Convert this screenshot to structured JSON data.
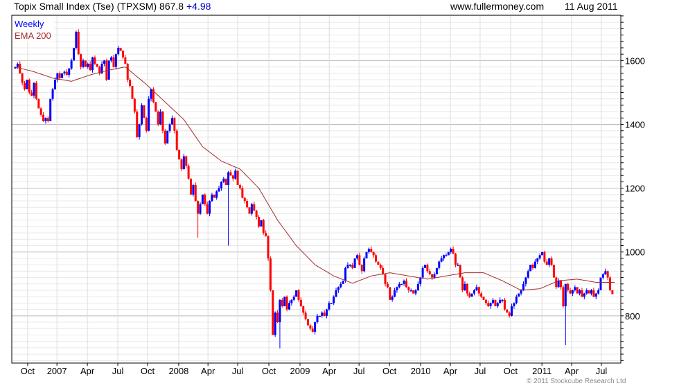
{
  "header": {
    "title": "Topix Small Index (Tse) (TPXSM) 867.8",
    "change": "+4.98",
    "site": "www.fullermoney.com",
    "date": "11 Aug 2011"
  },
  "copyright": "© 2011 Stockcube Research Ltd",
  "chart_data": {
    "type": "candlestick",
    "title": "Topix Small Index (Tse) (TPXSM)",
    "legend": [
      {
        "label": "Weekly",
        "color": "#0000ff"
      },
      {
        "label": "EMA 200",
        "color": "#a52a2a"
      }
    ],
    "legend_placement": "top-left",
    "colors": {
      "up": "#0000ff",
      "down": "#ff0000",
      "ema": "#a52a2a"
    },
    "ylim": [
      652,
      1742
    ],
    "yticks": [
      800,
      1000,
      1200,
      1400,
      1600
    ],
    "xticks": [
      {
        "label": "Oct",
        "week": 5.3
      },
      {
        "label": "2007",
        "week": 17.8
      },
      {
        "label": "Apr",
        "week": 30.8
      },
      {
        "label": "Jul",
        "week": 43.8
      },
      {
        "label": "Oct",
        "week": 56.5
      },
      {
        "label": "2008",
        "week": 69.8
      },
      {
        "label": "Apr",
        "week": 82.3
      },
      {
        "label": "Jul",
        "week": 95
      },
      {
        "label": "Oct",
        "week": 108.3
      },
      {
        "label": "2009",
        "week": 121.6
      },
      {
        "label": "Apr",
        "week": 134.1
      },
      {
        "label": "Jul",
        "week": 146.8
      },
      {
        "label": "Oct",
        "week": 159.8
      },
      {
        "label": "2010",
        "week": 173.1
      },
      {
        "label": "Apr",
        "week": 185.8
      },
      {
        "label": "Jul",
        "week": 198.5
      },
      {
        "label": "Oct",
        "week": 211.5
      },
      {
        "label": "2011",
        "week": 224.9
      },
      {
        "label": "Apr",
        "week": 237.6
      },
      {
        "label": "Jul",
        "week": 250.3
      }
    ],
    "closes": [
      1580,
      1590,
      1560,
      1530,
      1510,
      1540,
      1500,
      1490,
      1530,
      1480,
      1450,
      1430,
      1410,
      1420,
      1410,
      1480,
      1510,
      1540,
      1560,
      1545,
      1560,
      1565,
      1555,
      1575,
      1600,
      1640,
      1690,
      1620,
      1580,
      1600,
      1580,
      1590,
      1570,
      1610,
      1590,
      1580,
      1560,
      1590,
      1600,
      1540,
      1600,
      1610,
      1580,
      1620,
      1640,
      1630,
      1610,
      1590,
      1540,
      1520,
      1480,
      1440,
      1360,
      1400,
      1460,
      1420,
      1380,
      1480,
      1510,
      1470,
      1440,
      1400,
      1440,
      1380,
      1340,
      1380,
      1400,
      1420,
      1380,
      1320,
      1290,
      1260,
      1300,
      1270,
      1230,
      1180,
      1210,
      1160,
      1120,
      1150,
      1180,
      1150,
      1120,
      1160,
      1180,
      1170,
      1190,
      1200,
      1220,
      1230,
      1210,
      1250,
      1240,
      1230,
      1255,
      1210,
      1200,
      1170,
      1160,
      1140,
      1120,
      1150,
      1130,
      1110,
      1080,
      1100,
      1060,
      1050,
      980,
      880,
      740,
      810,
      780,
      850,
      830,
      860,
      820,
      840,
      850,
      860,
      880,
      850,
      830,
      810,
      790,
      770,
      760,
      750,
      780,
      800,
      800,
      810,
      800,
      820,
      840,
      840,
      860,
      880,
      890,
      900,
      910,
      950,
      960,
      960,
      950,
      980,
      990,
      960,
      940,
      980,
      1000,
      1010,
      1000,
      990,
      970,
      960,
      950,
      930,
      900,
      890,
      850,
      860,
      880,
      890,
      900,
      900,
      910,
      890,
      880,
      880,
      870,
      880,
      900,
      920,
      950,
      960,
      940,
      930,
      920,
      930,
      950,
      970,
      980,
      990,
      990,
      1000,
      1010,
      995,
      960,
      960,
      920,
      880,
      900,
      870,
      860,
      870,
      880,
      890,
      870,
      860,
      850,
      840,
      830,
      840,
      850,
      830,
      840,
      850,
      850,
      820,
      810,
      800,
      830,
      840,
      860,
      870,
      880,
      900,
      920,
      940,
      960,
      950,
      970,
      980,
      990,
      1000,
      970,
      960,
      980,
      960,
      920,
      890,
      910,
      890,
      830,
      900,
      880,
      870,
      880,
      890,
      870,
      880,
      860,
      870,
      880,
      870,
      880,
      860,
      870,
      880,
      920,
      930,
      940,
      920,
      880,
      868
    ],
    "first_open": 1575,
    "wick": 8,
    "spike_lows": [
      {
        "week": 78,
        "low": 1045
      },
      {
        "week": 91,
        "low": 1020
      },
      {
        "week": 113,
        "low": 698
      },
      {
        "week": 235,
        "low": 708
      },
      {
        "week": 256,
        "low": 822
      }
    ],
    "ema200": [
      {
        "week": 0,
        "value": 1580
      },
      {
        "week": 8,
        "value": 1565
      },
      {
        "week": 16,
        "value": 1545
      },
      {
        "week": 24,
        "value": 1535
      },
      {
        "week": 32,
        "value": 1555
      },
      {
        "week": 40,
        "value": 1570
      },
      {
        "week": 47,
        "value": 1580
      },
      {
        "week": 56,
        "value": 1525
      },
      {
        "week": 64,
        "value": 1470
      },
      {
        "week": 72,
        "value": 1415
      },
      {
        "week": 80,
        "value": 1330
      },
      {
        "week": 88,
        "value": 1285
      },
      {
        "week": 96,
        "value": 1260
      },
      {
        "week": 104,
        "value": 1200
      },
      {
        "week": 112,
        "value": 1100
      },
      {
        "week": 120,
        "value": 1020
      },
      {
        "week": 128,
        "value": 960
      },
      {
        "week": 136,
        "value": 925
      },
      {
        "week": 144,
        "value": 902
      },
      {
        "week": 152,
        "value": 925
      },
      {
        "week": 160,
        "value": 935
      },
      {
        "week": 168,
        "value": 925
      },
      {
        "week": 176,
        "value": 915
      },
      {
        "week": 184,
        "value": 925
      },
      {
        "week": 192,
        "value": 935
      },
      {
        "week": 200,
        "value": 935
      },
      {
        "week": 208,
        "value": 910
      },
      {
        "week": 216,
        "value": 880
      },
      {
        "week": 224,
        "value": 885
      },
      {
        "week": 232,
        "value": 910
      },
      {
        "week": 240,
        "value": 915
      },
      {
        "week": 248,
        "value": 905
      },
      {
        "week": 256,
        "value": 905
      }
    ]
  }
}
